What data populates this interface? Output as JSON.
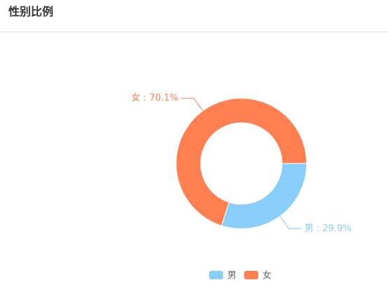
{
  "chart_data": {
    "type": "pie",
    "title": "性别比例",
    "categories": [
      "男",
      "女"
    ],
    "values": [
      29.9,
      70.1
    ],
    "value_labels": [
      "男 : 29.9%",
      "女 : 70.1%"
    ],
    "colors": [
      "#87cefa",
      "#ff7f50"
    ],
    "legend": "bottom"
  }
}
